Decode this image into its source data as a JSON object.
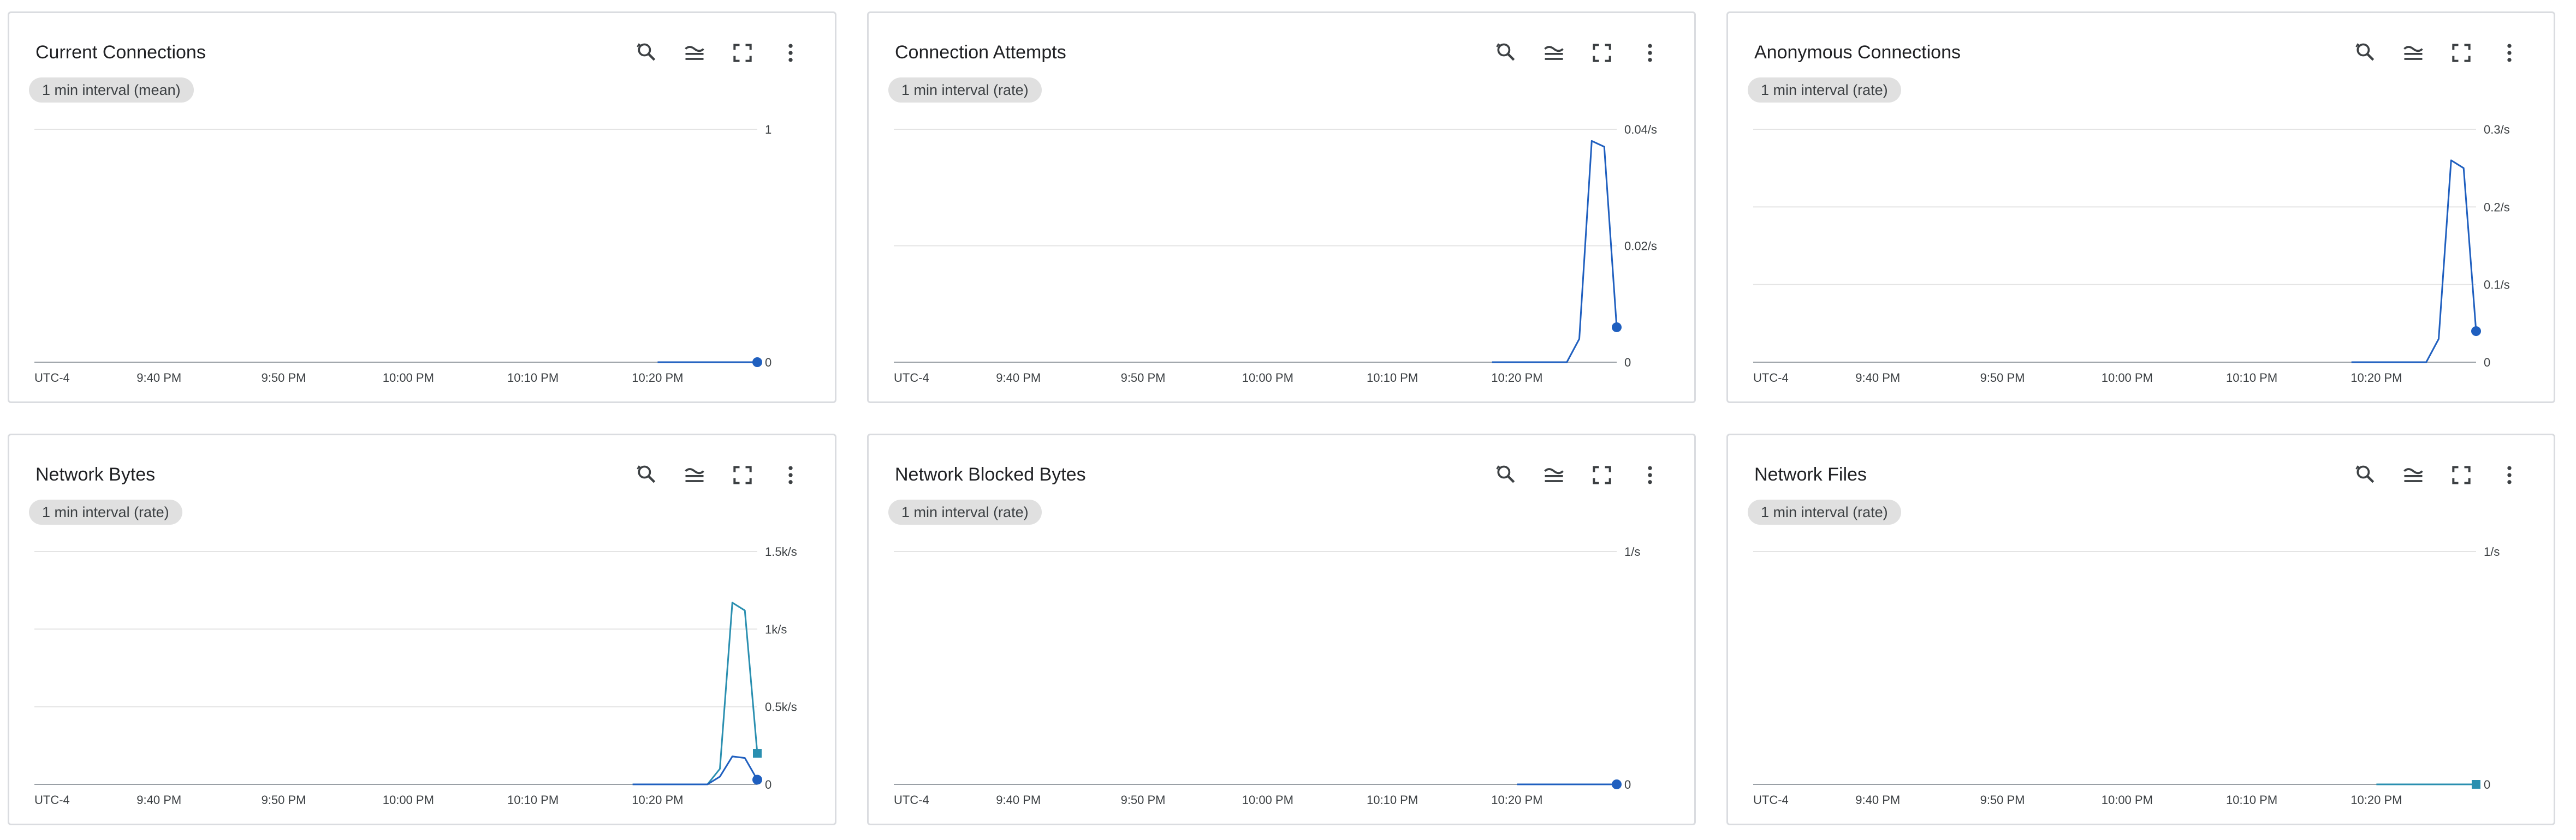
{
  "colors": {
    "series_blue": "#1f5fbf",
    "series_teal": "#2a8fb0",
    "grid": "#e4e4e4",
    "chip_bg": "#e0e0e0",
    "card_border": "#dadce0"
  },
  "toolbar": {
    "icons": [
      "zoom-reset-icon",
      "legend-icon",
      "fullscreen-icon",
      "more-vert-icon"
    ]
  },
  "cards": [
    {
      "title": "Current Connections",
      "chip": "1 min interval (mean)",
      "chart_data": {
        "type": "line",
        "title": "Current Connections",
        "x": [
          "9:30 PM",
          "9:35 PM",
          "9:40 PM",
          "9:45 PM",
          "9:50 PM",
          "9:55 PM",
          "10:00 PM",
          "10:05 PM",
          "10:10 PM",
          "10:15 PM",
          "10:20 PM",
          "10:25 PM",
          "10:28 PM"
        ],
        "series": [
          {
            "values": [
              null,
              null,
              null,
              null,
              null,
              null,
              null,
              null,
              null,
              null,
              0,
              0,
              0
            ],
            "color": "#1f5fbf"
          }
        ],
        "ylim": [
          0,
          1
        ],
        "yticks": [
          "1",
          "0"
        ],
        "xticks": [
          "UTC-4",
          "9:40 PM",
          "9:50 PM",
          "10:00 PM",
          "10:10 PM",
          "10:20 PM"
        ],
        "grid": true
      }
    },
    {
      "title": "Connection Attempts",
      "chip": "1 min interval (rate)",
      "chart_data": {
        "type": "line",
        "title": "Connection Attempts",
        "x": [
          "10:18 PM",
          "10:19 PM",
          "10:20 PM",
          "10:21 PM",
          "10:22 PM",
          "10:23 PM",
          "10:24 PM",
          "10:25 PM",
          "10:26 PM",
          "10:27 PM",
          "10:28 PM"
        ],
        "series": [
          {
            "values": [
              0,
              0,
              0,
              0,
              0,
              0,
              0,
              0.004,
              0.038,
              0.037,
              0.006
            ],
            "color": "#1f5fbf"
          }
        ],
        "ylim": [
          0,
          0.04
        ],
        "yticks": [
          "0.04/s",
          "0.02/s",
          "0"
        ],
        "xticks": [
          "UTC-4",
          "9:40 PM",
          "9:50 PM",
          "10:00 PM",
          "10:10 PM",
          "10:20 PM"
        ],
        "grid": true
      }
    },
    {
      "title": "Anonymous Connections",
      "chip": "1 min interval (rate)",
      "chart_data": {
        "type": "line",
        "title": "Anonymous Connections",
        "x": [
          "10:18 PM",
          "10:19 PM",
          "10:20 PM",
          "10:21 PM",
          "10:22 PM",
          "10:23 PM",
          "10:24 PM",
          "10:25 PM",
          "10:26 PM",
          "10:27 PM",
          "10:28 PM"
        ],
        "series": [
          {
            "values": [
              0,
              0,
              0,
              0,
              0,
              0,
              0,
              0.03,
              0.26,
              0.25,
              0.04
            ],
            "color": "#1f5fbf"
          }
        ],
        "ylim": [
          0,
          0.3
        ],
        "yticks": [
          "0.3/s",
          "0.2/s",
          "0.1/s",
          "0"
        ],
        "xticks": [
          "UTC-4",
          "9:40 PM",
          "9:50 PM",
          "10:00 PM",
          "10:10 PM",
          "10:20 PM"
        ],
        "grid": true
      }
    },
    {
      "title": "Network Bytes",
      "chip": "1 min interval (rate)",
      "chart_data": {
        "type": "line",
        "title": "Network Bytes",
        "x": [
          "10:18 PM",
          "10:19 PM",
          "10:20 PM",
          "10:21 PM",
          "10:22 PM",
          "10:23 PM",
          "10:24 PM",
          "10:25 PM",
          "10:26 PM",
          "10:27 PM",
          "10:28 PM"
        ],
        "series": [
          {
            "values": [
              0,
              0,
              0,
              0,
              0,
              0,
              0,
              0.1,
              1.17,
              1.12,
              0.2
            ],
            "color": "#2a8fb0"
          },
          {
            "values": [
              0,
              0,
              0,
              0,
              0,
              0,
              0,
              0.05,
              0.18,
              0.17,
              0.03
            ],
            "color": "#1f5fbf"
          }
        ],
        "ylim": [
          0,
          1.5
        ],
        "yticks": [
          "1.5k/s",
          "1k/s",
          "0.5k/s",
          "0"
        ],
        "xticks": [
          "UTC-4",
          "9:40 PM",
          "9:50 PM",
          "10:00 PM",
          "10:10 PM",
          "10:20 PM"
        ],
        "grid": true
      }
    },
    {
      "title": "Network Blocked Bytes",
      "chip": "1 min interval (rate)",
      "chart_data": {
        "type": "line",
        "title": "Network Blocked Bytes",
        "x": [
          "9:30 PM",
          "9:35 PM",
          "9:40 PM",
          "9:45 PM",
          "9:50 PM",
          "9:55 PM",
          "10:00 PM",
          "10:05 PM",
          "10:10 PM",
          "10:15 PM",
          "10:20 PM",
          "10:25 PM",
          "10:28 PM"
        ],
        "series": [
          {
            "values": [
              null,
              null,
              null,
              null,
              null,
              null,
              null,
              null,
              null,
              null,
              0,
              0,
              0
            ],
            "color": "#1f5fbf"
          }
        ],
        "ylim": [
          0,
          1
        ],
        "yticks": [
          "1/s",
          "0"
        ],
        "xticks": [
          "UTC-4",
          "9:40 PM",
          "9:50 PM",
          "10:00 PM",
          "10:10 PM",
          "10:20 PM"
        ],
        "grid": true
      }
    },
    {
      "title": "Network Files",
      "chip": "1 min interval (rate)",
      "chart_data": {
        "type": "line",
        "title": "Network Files",
        "x": [
          "9:30 PM",
          "9:35 PM",
          "9:40 PM",
          "9:45 PM",
          "9:50 PM",
          "9:55 PM",
          "10:00 PM",
          "10:05 PM",
          "10:10 PM",
          "10:15 PM",
          "10:20 PM",
          "10:25 PM",
          "10:28 PM"
        ],
        "series": [
          {
            "values": [
              null,
              null,
              null,
              null,
              null,
              null,
              null,
              null,
              null,
              null,
              0,
              0,
              0
            ],
            "color": "#2a8fb0"
          }
        ],
        "ylim": [
          0,
          1
        ],
        "yticks": [
          "1/s",
          "0"
        ],
        "xticks": [
          "UTC-4",
          "9:40 PM",
          "9:50 PM",
          "10:00 PM",
          "10:10 PM",
          "10:20 PM"
        ],
        "grid": true
      }
    }
  ]
}
